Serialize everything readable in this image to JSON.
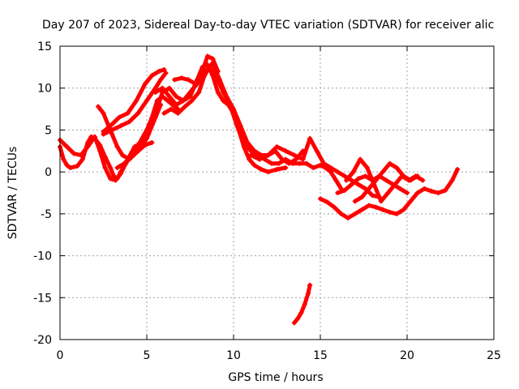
{
  "chart_data": {
    "type": "scatter",
    "title": "Day 207 of 2023, Sidereal Day-to-day VTEC variation (SDTVAR) for receiver alic",
    "xlabel": "GPS time / hours",
    "ylabel": "SDTVAR / TECUs",
    "xlim": [
      0,
      25
    ],
    "ylim": [
      -20,
      15
    ],
    "xticks": [
      0,
      5,
      10,
      15,
      20,
      25
    ],
    "yticks": [
      15,
      10,
      5,
      0,
      -5,
      -10,
      -15,
      -20
    ],
    "grid": true,
    "legend": "none",
    "marker_color": "#ff0000",
    "series": [
      {
        "x": [
          0.0,
          0.2,
          0.4,
          0.6,
          1.0,
          1.3,
          1.6,
          1.8,
          2.0,
          2.3,
          2.6,
          2.9,
          3.1,
          3.3,
          3.5,
          3.8,
          4.2,
          4.6,
          5.0,
          5.3,
          5.6,
          5.9,
          6.2,
          6.5,
          6.8
        ],
        "y": [
          3.0,
          1.5,
          0.8,
          0.5,
          0.7,
          1.5,
          3.5,
          4.2,
          4.0,
          3.2,
          1.8,
          0.5,
          -0.5,
          -0.8,
          0.0,
          1.0,
          2.5,
          3.5,
          5.0,
          6.5,
          8.5,
          9.0,
          8.5,
          8.0,
          7.5
        ]
      },
      {
        "x": [
          0.0,
          0.4,
          0.8,
          1.2,
          1.6,
          2.0,
          2.3,
          2.6,
          2.9,
          3.2,
          3.5,
          3.9,
          4.3,
          4.7,
          5.1,
          5.5,
          5.9,
          6.3,
          6.7,
          7.1,
          7.5,
          7.9,
          8.2,
          8.5,
          8.8,
          9.1,
          9.4,
          9.7,
          10.0,
          10.3,
          10.6,
          10.9,
          11.2,
          11.6,
          12.0,
          12.5,
          13.0
        ],
        "y": [
          3.8,
          3.0,
          2.2,
          2.0,
          3.0,
          4.2,
          2.5,
          0.5,
          -0.8,
          -1.0,
          -0.2,
          1.5,
          3.0,
          3.5,
          4.5,
          7.0,
          9.5,
          10.0,
          9.0,
          8.5,
          9.0,
          11.0,
          12.5,
          12.8,
          11.5,
          9.5,
          8.5,
          8.0,
          7.0,
          5.0,
          3.0,
          1.5,
          0.8,
          0.3,
          0.0,
          0.3,
          0.5
        ]
      },
      {
        "x": [
          2.2,
          2.5,
          2.8,
          3.0,
          3.3,
          3.6,
          4.0,
          4.5,
          5.0,
          5.5,
          5.8
        ],
        "y": [
          7.8,
          7.0,
          5.5,
          4.5,
          3.0,
          2.0,
          1.5,
          2.5,
          4.0,
          6.5,
          8.0
        ]
      },
      {
        "x": [
          2.5,
          3.0,
          3.5,
          4.0,
          4.5,
          5.0,
          5.5,
          5.8,
          6.1
        ],
        "y": [
          4.5,
          5.0,
          5.5,
          6.0,
          7.0,
          8.5,
          10.0,
          11.0,
          11.8
        ]
      },
      {
        "x": [
          2.5,
          2.9,
          3.4,
          3.9,
          4.4,
          4.9,
          5.3,
          5.7,
          6.0
        ],
        "y": [
          4.8,
          5.5,
          6.5,
          7.0,
          8.5,
          10.5,
          11.5,
          12.0,
          12.2
        ]
      },
      {
        "x": [
          3.3,
          3.7,
          4.1,
          4.5,
          4.9,
          5.3
        ],
        "y": [
          0.5,
          1.0,
          1.8,
          2.5,
          3.2,
          3.5
        ]
      },
      {
        "x": [
          5.5,
          5.9,
          6.3,
          6.7,
          7.1,
          7.5,
          7.9,
          8.2,
          8.5,
          8.8,
          9.1
        ],
        "y": [
          9.5,
          10.0,
          9.0,
          8.0,
          8.5,
          9.5,
          10.5,
          12.0,
          13.8,
          13.5,
          12.0
        ]
      },
      {
        "x": [
          6.0,
          6.4,
          6.8,
          7.2,
          7.6,
          8.0,
          8.4,
          8.8,
          9.2,
          9.6,
          10.0,
          10.4,
          10.8,
          11.2,
          11.6,
          12.0,
          12.4,
          12.8,
          13.2,
          13.6,
          14.0
        ],
        "y": [
          7.0,
          7.5,
          7.0,
          7.8,
          8.5,
          9.5,
          12.0,
          13.0,
          11.0,
          9.0,
          7.5,
          5.5,
          3.5,
          2.5,
          2.0,
          2.0,
          2.5,
          1.5,
          1.0,
          1.5,
          2.5
        ]
      },
      {
        "x": [
          6.6,
          7.0,
          7.4,
          7.8,
          8.2,
          8.6,
          9.0,
          9.4,
          9.8,
          10.2,
          10.6,
          11.0,
          11.4,
          11.8,
          12.2,
          12.6,
          13.0,
          13.4,
          13.8,
          14.2,
          14.6,
          15.0,
          15.3,
          15.6,
          15.9,
          16.2
        ],
        "y": [
          11.0,
          11.2,
          11.0,
          10.5,
          11.0,
          12.5,
          11.5,
          9.5,
          8.0,
          5.5,
          3.5,
          2.5,
          2.0,
          1.5,
          1.0,
          1.0,
          1.5,
          1.0,
          1.0,
          1.0,
          0.5,
          0.8,
          0.5,
          0.0,
          -1.0,
          -2.0
        ]
      },
      {
        "x": [
          11.0,
          11.5,
          12.0,
          12.5,
          13.0,
          13.5,
          14.0,
          14.4,
          14.8,
          15.2,
          15.6,
          16.0,
          16.4,
          16.8,
          17.2,
          17.6,
          18.0,
          18.4
        ],
        "y": [
          2.0,
          1.5,
          2.0,
          3.0,
          2.5,
          2.0,
          1.5,
          4.0,
          2.5,
          1.0,
          0.5,
          0.0,
          -0.5,
          -1.0,
          -1.5,
          -2.0,
          -2.8,
          -3.0
        ]
      },
      {
        "x": [
          15.0,
          15.4,
          15.8,
          16.2,
          16.6,
          17.0,
          17.4,
          17.8,
          18.2,
          18.6,
          19.0,
          19.4,
          19.8,
          20.2,
          20.6,
          21.0,
          21.4,
          21.8,
          22.2,
          22.6,
          22.9
        ],
        "y": [
          -3.2,
          -3.6,
          -4.2,
          -5.0,
          -5.5,
          -5.0,
          -4.5,
          -4.0,
          -4.2,
          -4.5,
          -4.8,
          -5.0,
          -4.5,
          -3.5,
          -2.5,
          -2.0,
          -2.3,
          -2.5,
          -2.2,
          -1.0,
          0.3
        ]
      },
      {
        "x": [
          16.5,
          16.9,
          17.3,
          17.7,
          18.1,
          18.5,
          18.9,
          19.3,
          19.7,
          20.1,
          20.5,
          20.9
        ],
        "y": [
          -1.0,
          0.0,
          1.5,
          0.5,
          -1.5,
          -3.5,
          -2.5,
          -1.5,
          -0.5,
          -1.0,
          -0.5,
          -1.0
        ]
      },
      {
        "x": [
          16.0,
          16.4,
          16.8,
          17.2,
          17.6,
          18.0,
          18.4,
          18.8,
          19.2,
          19.6,
          20.0
        ],
        "y": [
          -2.5,
          -2.2,
          -1.5,
          -0.8,
          -0.5,
          -1.0,
          -0.5,
          -1.0,
          -1.5,
          -2.0,
          -2.5
        ]
      },
      {
        "x": [
          17.0,
          17.4,
          17.8,
          18.2,
          18.6,
          19.0,
          19.4,
          19.8,
          20.2,
          20.6
        ],
        "y": [
          -3.5,
          -3.0,
          -2.0,
          -1.0,
          0.0,
          1.0,
          0.5,
          -0.5,
          -1.0,
          -0.5
        ]
      },
      {
        "x": [
          13.5,
          13.7,
          13.9,
          14.1,
          14.3,
          14.4
        ],
        "y": [
          -18.0,
          -17.5,
          -16.8,
          -15.8,
          -14.5,
          -13.5
        ]
      }
    ]
  }
}
